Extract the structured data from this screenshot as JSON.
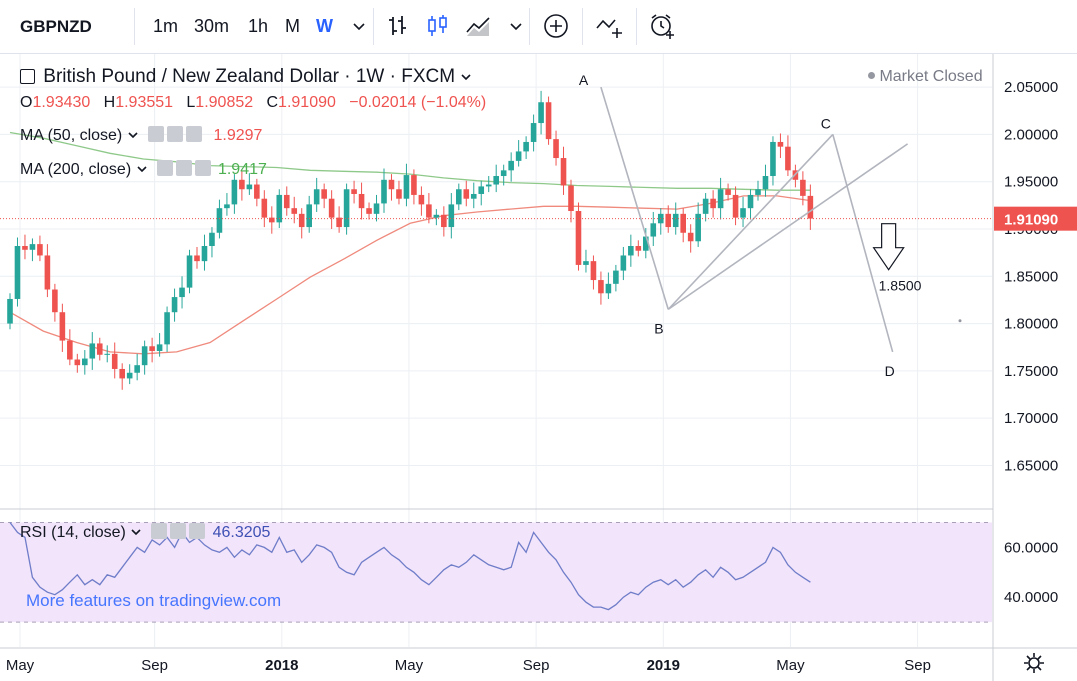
{
  "toolbar": {
    "symbol": "GBPNZD",
    "intervals": [
      "1m",
      "30m",
      "1h",
      "M",
      "W"
    ],
    "active_interval": "W",
    "icons": [
      "chevron-down-icon",
      "bar-chart-icon",
      "candles-icon",
      "area-chart-icon",
      "chevron-down-icon",
      "add-indicator-icon",
      "compare-icon",
      "alert-clock-icon"
    ]
  },
  "header": {
    "title": "British Pound / New Zealand Dollar · 1W · FXCM",
    "market_status": "Market Closed",
    "ohlc": {
      "o_label": "O",
      "o": "1.93430",
      "h_label": "H",
      "h": "1.93551",
      "l_label": "L",
      "l": "1.90852",
      "c_label": "C",
      "c": "1.91090",
      "change": "−0.02014 (−1.04%)"
    }
  },
  "indicators": {
    "ma50": {
      "label": "MA (50, close)",
      "value": "1.9297"
    },
    "ma200": {
      "label": "MA (200, close)",
      "value": "1.9417"
    },
    "rsi": {
      "label": "RSI (14, close)",
      "value": "46.3205"
    }
  },
  "colors": {
    "up": "#26a69a",
    "down": "#ef5350",
    "ma50": "#ef8a7d",
    "ma200": "#8fc98a",
    "rsi_line": "#6f7dc9",
    "rsi_band": "#f2e4fa",
    "price_tag": "#ef5350",
    "grid": "#eceff3",
    "watermark": "#2962ff"
  },
  "watermark": "More features on tradingview.com",
  "chart_data": [
    {
      "type": "candlestick",
      "title": "British Pound / New Zealand Dollar · 1W · FXCM",
      "x_tick_labels": [
        "May",
        "Sep",
        "2018",
        "May",
        "Sep",
        "2019",
        "May",
        "Sep"
      ],
      "x_tick_index": [
        0,
        18,
        35,
        52,
        69,
        86,
        103,
        120
      ],
      "y_ticks": [
        "2.05000",
        "2.00000",
        "1.95000",
        "1.90000",
        "1.85000",
        "1.80000",
        "1.75000",
        "1.70000",
        "1.65000"
      ],
      "ylim": [
        1.605,
        2.085
      ],
      "last_price": "1.91090",
      "closes": [
        1.826,
        1.882,
        1.878,
        1.884,
        1.872,
        1.836,
        1.812,
        1.782,
        1.762,
        1.756,
        1.763,
        1.779,
        1.767,
        1.768,
        1.752,
        1.742,
        1.748,
        1.756,
        1.776,
        1.771,
        1.778,
        1.812,
        1.828,
        1.838,
        1.872,
        1.866,
        1.882,
        1.896,
        1.922,
        1.926,
        1.952,
        1.942,
        1.947,
        1.932,
        1.912,
        1.907,
        1.936,
        1.922,
        1.916,
        1.902,
        1.926,
        1.942,
        1.932,
        1.912,
        1.902,
        1.942,
        1.937,
        1.922,
        1.916,
        1.927,
        1.952,
        1.942,
        1.932,
        1.957,
        1.936,
        1.926,
        1.912,
        1.915,
        1.902,
        1.926,
        1.942,
        1.932,
        1.937,
        1.945,
        1.947,
        1.956,
        1.962,
        1.972,
        1.982,
        1.992,
        2.012,
        2.034,
        1.995,
        1.975,
        1.946,
        1.919,
        1.862,
        1.866,
        1.846,
        1.832,
        1.842,
        1.856,
        1.872,
        1.882,
        1.877,
        1.892,
        1.906,
        1.916,
        1.902,
        1.916,
        1.896,
        1.887,
        1.916,
        1.932,
        1.922,
        1.942,
        1.936,
        1.912,
        1.922,
        1.936,
        1.942,
        1.956,
        1.992,
        1.987,
        1.962,
        1.952,
        1.935,
        1.911
      ],
      "ma50": [
        1.812,
        1.792,
        1.78,
        1.77,
        1.768,
        1.77,
        1.78,
        1.803,
        1.826,
        1.849,
        1.868,
        1.888,
        1.906,
        1.914,
        1.918,
        1.921,
        1.924,
        1.924,
        1.923,
        1.922,
        1.921,
        1.927,
        1.935,
        1.935,
        1.93
      ],
      "ma200": [
        2.002,
        1.996,
        1.988,
        1.98,
        1.974,
        1.971,
        1.967,
        1.966,
        1.965,
        1.962,
        1.961,
        1.96,
        1.958,
        1.954,
        1.951,
        1.949,
        1.948,
        1.946,
        1.945,
        1.944,
        1.943,
        1.943,
        1.942,
        1.941,
        1.941
      ],
      "annotations": [
        {
          "label": "A",
          "price": 2.05
        },
        {
          "label": "B",
          "price": 1.815
        },
        {
          "label": "C",
          "price": 2.0
        },
        {
          "label": "D",
          "price": 1.77
        },
        {
          "label": "1.8500",
          "price": 1.85
        }
      ]
    },
    {
      "type": "line",
      "title": "RSI (14, close)",
      "y_ticks": [
        "60.0000",
        "40.0000"
      ],
      "ylim": [
        20,
        75
      ],
      "band": [
        30,
        70
      ],
      "values": [
        70,
        66,
        64,
        48,
        44,
        42,
        41,
        43,
        46,
        49,
        45,
        47,
        45,
        49,
        48,
        52,
        56,
        60,
        58,
        63,
        61,
        64,
        60,
        66,
        62,
        64,
        61,
        59,
        58,
        60,
        56,
        59,
        57,
        61,
        60,
        58,
        64,
        58,
        59,
        54,
        57,
        61,
        60,
        58,
        52,
        50,
        49,
        54,
        56,
        58,
        60,
        57,
        55,
        52,
        50,
        47,
        45,
        48,
        51,
        53,
        52,
        54,
        57,
        55,
        53,
        52,
        51,
        52,
        62,
        58,
        66,
        62,
        58,
        55,
        50,
        46,
        41,
        38,
        36,
        36,
        35,
        37,
        40,
        42,
        41,
        44,
        46,
        47,
        45,
        47,
        44,
        46,
        49,
        51,
        48,
        52,
        50,
        47,
        48,
        50,
        52,
        54,
        60,
        58,
        53,
        50,
        48,
        46
      ]
    }
  ],
  "time_axis_icon": "settings-gear-icon"
}
